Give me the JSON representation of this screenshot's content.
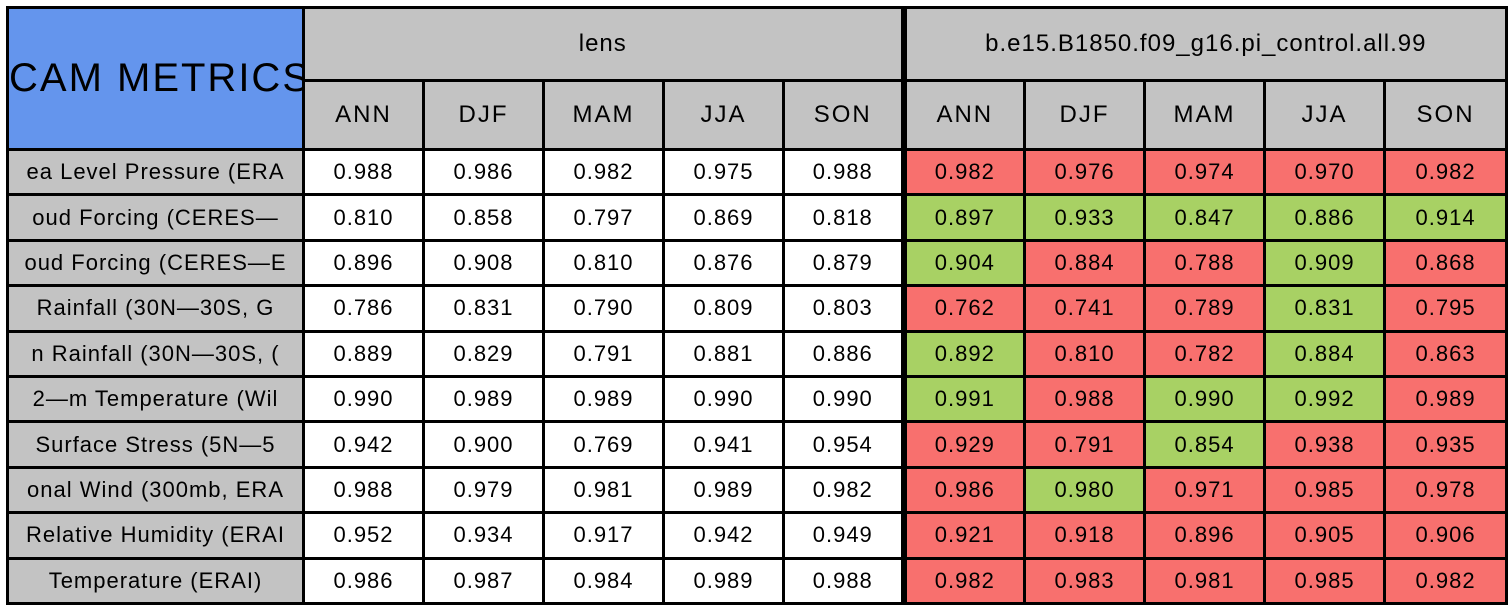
{
  "colors": {
    "blue": "#6495ED",
    "gray": "#C3C3C3",
    "red": "#F8706E",
    "green": "#A8D164",
    "white": "#FFFFFF",
    "border": "#000000"
  },
  "chart_data": {
    "type": "table",
    "title": "CAM METRICS",
    "column_groups": [
      {
        "label": "lens"
      },
      {
        "label": "b.e15.B1850.f09_g16.pi_control.all.99"
      }
    ],
    "season_columns": [
      "ANN",
      "DJF",
      "MAM",
      "JJA",
      "SON"
    ],
    "rows": [
      {
        "label": "ea Level Pressure (ERA",
        "lens": [
          "0.988",
          "0.986",
          "0.982",
          "0.975",
          "0.988"
        ],
        "control": [
          "0.982",
          "0.976",
          "0.974",
          "0.970",
          "0.982"
        ],
        "control_cell_colors": [
          "red",
          "red",
          "red",
          "red",
          "red"
        ]
      },
      {
        "label": "oud Forcing (CERES—",
        "lens": [
          "0.810",
          "0.858",
          "0.797",
          "0.869",
          "0.818"
        ],
        "control": [
          "0.897",
          "0.933",
          "0.847",
          "0.886",
          "0.914"
        ],
        "control_cell_colors": [
          "green",
          "green",
          "green",
          "green",
          "green"
        ]
      },
      {
        "label": "oud Forcing (CERES—E",
        "lens": [
          "0.896",
          "0.908",
          "0.810",
          "0.876",
          "0.879"
        ],
        "control": [
          "0.904",
          "0.884",
          "0.788",
          "0.909",
          "0.868"
        ],
        "control_cell_colors": [
          "green",
          "red",
          "red",
          "green",
          "red"
        ]
      },
      {
        "label": "Rainfall (30N—30S, G",
        "lens": [
          "0.786",
          "0.831",
          "0.790",
          "0.809",
          "0.803"
        ],
        "control": [
          "0.762",
          "0.741",
          "0.789",
          "0.831",
          "0.795"
        ],
        "control_cell_colors": [
          "red",
          "red",
          "red",
          "green",
          "red"
        ]
      },
      {
        "label": "n Rainfall (30N—30S, (",
        "lens": [
          "0.889",
          "0.829",
          "0.791",
          "0.881",
          "0.886"
        ],
        "control": [
          "0.892",
          "0.810",
          "0.782",
          "0.884",
          "0.863"
        ],
        "control_cell_colors": [
          "green",
          "red",
          "red",
          "green",
          "red"
        ]
      },
      {
        "label": "2—m Temperature (Wil",
        "lens": [
          "0.990",
          "0.989",
          "0.989",
          "0.990",
          "0.990"
        ],
        "control": [
          "0.991",
          "0.988",
          "0.990",
          "0.992",
          "0.989"
        ],
        "control_cell_colors": [
          "green",
          "red",
          "green",
          "green",
          "red"
        ]
      },
      {
        "label": "Surface Stress (5N—5",
        "lens": [
          "0.942",
          "0.900",
          "0.769",
          "0.941",
          "0.954"
        ],
        "control": [
          "0.929",
          "0.791",
          "0.854",
          "0.938",
          "0.935"
        ],
        "control_cell_colors": [
          "red",
          "red",
          "green",
          "red",
          "red"
        ]
      },
      {
        "label": "onal Wind (300mb, ERA",
        "lens": [
          "0.988",
          "0.979",
          "0.981",
          "0.989",
          "0.982"
        ],
        "control": [
          "0.986",
          "0.980",
          "0.971",
          "0.985",
          "0.978"
        ],
        "control_cell_colors": [
          "red",
          "green",
          "red",
          "red",
          "red"
        ]
      },
      {
        "label": "Relative Humidity (ERAI",
        "lens": [
          "0.952",
          "0.934",
          "0.917",
          "0.942",
          "0.949"
        ],
        "control": [
          "0.921",
          "0.918",
          "0.896",
          "0.905",
          "0.906"
        ],
        "control_cell_colors": [
          "red",
          "red",
          "red",
          "red",
          "red"
        ]
      },
      {
        "label": "Temperature (ERAI)",
        "lens": [
          "0.986",
          "0.987",
          "0.984",
          "0.989",
          "0.988"
        ],
        "control": [
          "0.982",
          "0.983",
          "0.981",
          "0.985",
          "0.982"
        ],
        "control_cell_colors": [
          "red",
          "red",
          "red",
          "red",
          "red"
        ]
      }
    ]
  }
}
